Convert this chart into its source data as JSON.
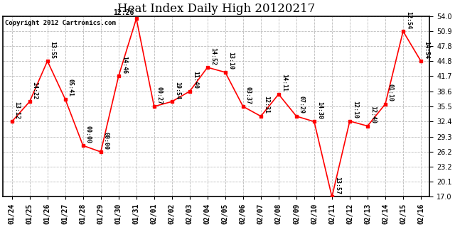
{
  "title": "Heat Index Daily High 20120217",
  "copyright": "Copyright 2012 Cartronics.com",
  "x_labels": [
    "01/24",
    "01/25",
    "01/26",
    "01/27",
    "01/28",
    "01/29",
    "01/30",
    "01/31",
    "02/01",
    "02/02",
    "02/03",
    "02/04",
    "02/05",
    "02/06",
    "02/07",
    "02/08",
    "02/09",
    "02/10",
    "02/11",
    "02/12",
    "02/13",
    "02/14",
    "02/15",
    "02/16"
  ],
  "y_values": [
    32.4,
    36.5,
    44.8,
    37.0,
    27.5,
    26.2,
    41.7,
    53.5,
    35.5,
    36.5,
    38.6,
    43.5,
    42.5,
    35.5,
    33.5,
    38.0,
    33.5,
    32.4,
    17.0,
    32.5,
    31.5,
    36.0,
    50.9,
    44.8
  ],
  "point_labels": [
    "13:12",
    "14:22",
    "13:55",
    "05:41",
    "00:00",
    "00:00",
    "14:46",
    "12:26",
    "00:27",
    "19:54",
    "11:40",
    "14:52",
    "13:10",
    "03:37",
    "12:31",
    "14:11",
    "07:29",
    "14:30",
    "13:57",
    "12:10",
    "12:40",
    "01:10",
    "12:54",
    "14:54"
  ],
  "peak_index": 7,
  "peak_label": "12:26",
  "ylim_min": 17.0,
  "ylim_max": 54.0,
  "yticks": [
    17.0,
    20.1,
    23.2,
    26.2,
    29.3,
    32.4,
    35.5,
    38.6,
    41.7,
    44.8,
    47.8,
    50.9,
    54.0
  ],
  "line_color": "red",
  "marker_color": "red",
  "marker_size": 3,
  "bg_color": "white",
  "grid_color": "#bbbbbb",
  "title_fontsize": 12,
  "annotation_fontsize": 6,
  "tick_fontsize": 7
}
